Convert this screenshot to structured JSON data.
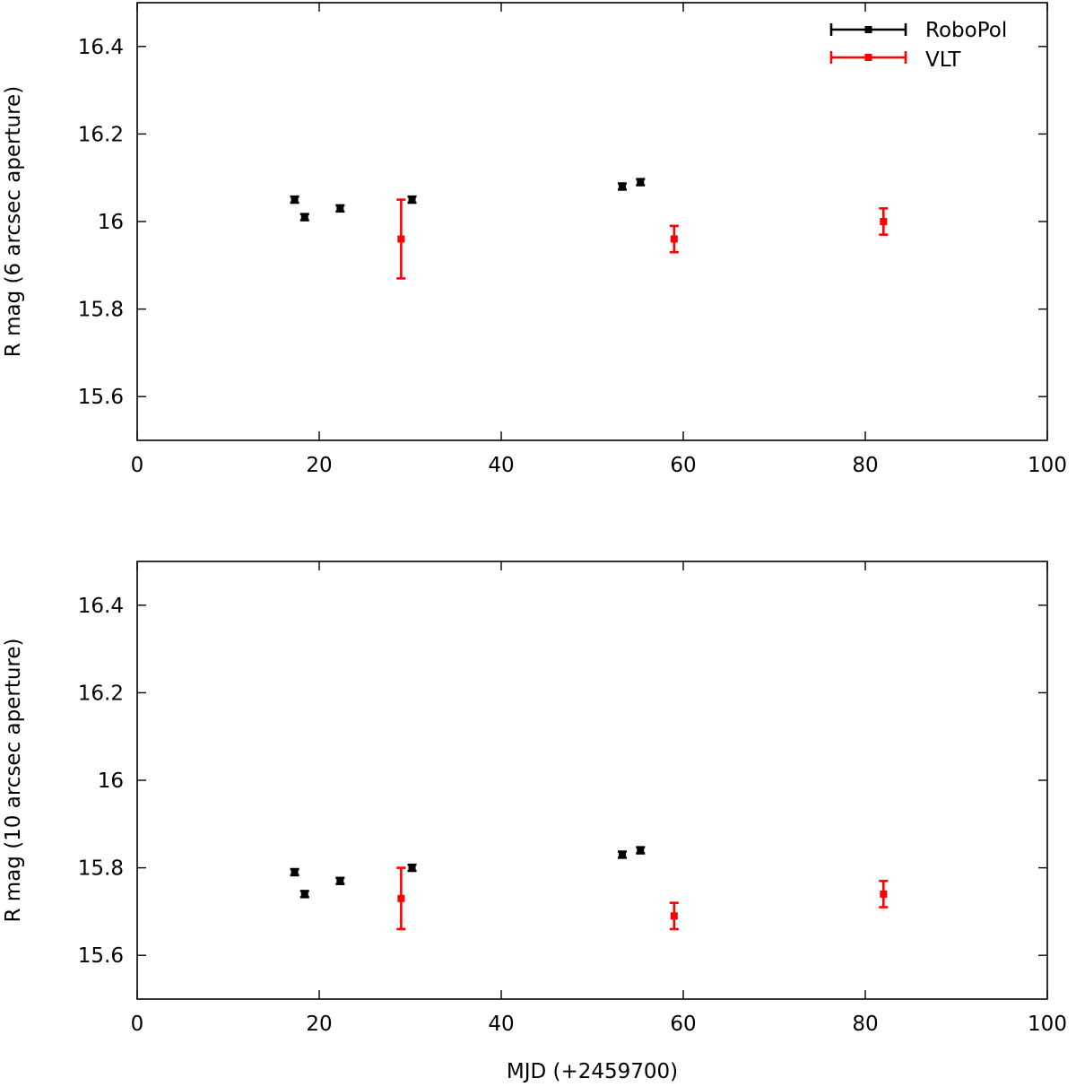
{
  "colors": {
    "robopol": "#000000",
    "vlt": "#ff0000",
    "axis": "#000000",
    "background": "#ffffff"
  },
  "chart_data": [
    {
      "type": "scatter",
      "title": "",
      "xlabel": "",
      "ylabel": "R mag (6 arcsec aperture)",
      "xlim": [
        0,
        100
      ],
      "ylim": [
        15.5,
        16.5
      ],
      "xticks": [
        0,
        20,
        40,
        60,
        80,
        100
      ],
      "xtick_labels": [
        "0",
        "20",
        "40",
        "60",
        "80",
        "100"
      ],
      "yticks": [
        15.6,
        15.8,
        16.0,
        16.2,
        16.4
      ],
      "ytick_labels": [
        "15.6",
        "15.8",
        "16",
        "16.2",
        "16.4"
      ],
      "legend": {
        "position": "top-right",
        "entries": [
          "RoboPol",
          "VLT"
        ]
      },
      "series": [
        {
          "name": "RoboPol",
          "color": "#000000",
          "x": [
            17.3,
            18.4,
            22.3,
            30.2,
            53.3,
            55.3
          ],
          "y": [
            16.05,
            16.01,
            16.03,
            16.05,
            16.08,
            16.09
          ],
          "err": [
            0.007,
            0.007,
            0.007,
            0.007,
            0.007,
            0.007
          ]
        },
        {
          "name": "VLT",
          "color": "#ff0000",
          "x": [
            29.0,
            59.0,
            82.0
          ],
          "y": [
            15.96,
            15.96,
            16.0
          ],
          "err": [
            0.09,
            0.03,
            0.03
          ]
        }
      ]
    },
    {
      "type": "scatter",
      "title": "",
      "xlabel": "MJD (+2459700)",
      "ylabel": "R mag (10 arcsec aperture)",
      "xlim": [
        0,
        100
      ],
      "ylim": [
        15.5,
        16.5
      ],
      "xticks": [
        0,
        20,
        40,
        60,
        80,
        100
      ],
      "xtick_labels": [
        "0",
        "20",
        "40",
        "60",
        "80",
        "100"
      ],
      "yticks": [
        15.6,
        15.8,
        16.0,
        16.2,
        16.4
      ],
      "ytick_labels": [
        "15.6",
        "15.8",
        "16",
        "16.2",
        "16.4"
      ],
      "series": [
        {
          "name": "RoboPol",
          "color": "#000000",
          "x": [
            17.3,
            18.4,
            22.3,
            30.2,
            53.3,
            55.3
          ],
          "y": [
            15.79,
            15.74,
            15.77,
            15.8,
            15.83,
            15.84
          ],
          "err": [
            0.007,
            0.007,
            0.007,
            0.007,
            0.007,
            0.007
          ]
        },
        {
          "name": "VLT",
          "color": "#ff0000",
          "x": [
            29.0,
            59.0,
            82.0
          ],
          "y": [
            15.73,
            15.69,
            15.74
          ],
          "err": [
            0.07,
            0.03,
            0.03
          ]
        }
      ]
    }
  ]
}
